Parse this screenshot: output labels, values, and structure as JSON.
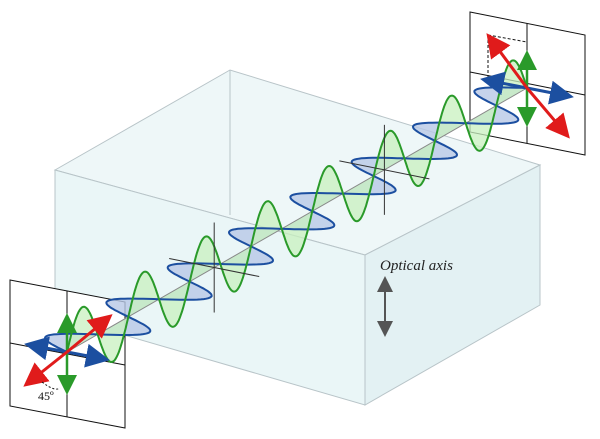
{
  "labels": {
    "optical_axis": "Optical axis",
    "angle": "45º"
  },
  "colors": {
    "vertical_wave": "#2a9a2a",
    "vertical_fill": "#c8f0bf",
    "horizontal_wave": "#1c4fa0",
    "horizontal_fill": "#b8c8e6",
    "polarization_vector": "#e01b1b",
    "crystal_face": "#e6f4f6"
  }
}
